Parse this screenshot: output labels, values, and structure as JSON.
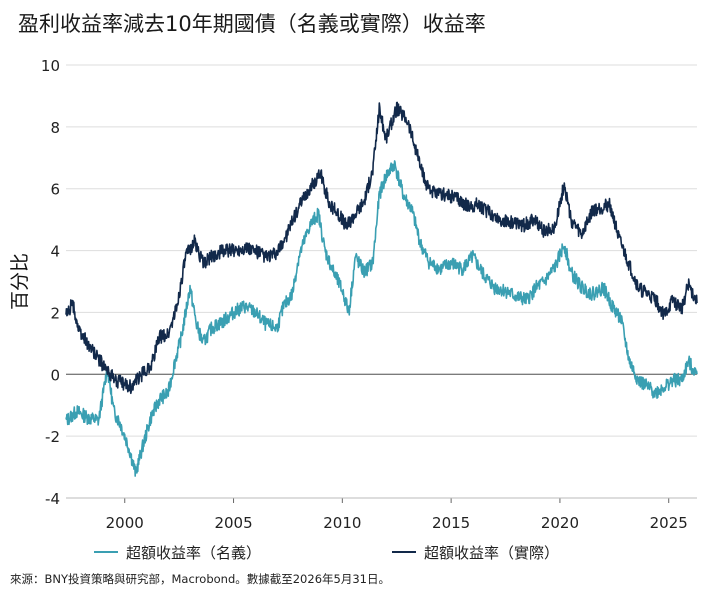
{
  "title": "盈利收益率減去10年期國債（名義或實際）收益率",
  "source": "來源：BNY投資策略與研究部，Macrobond。數據截至2026年5月31日。",
  "chart_data": {
    "type": "line",
    "ylabel": "百分比",
    "ylim": [
      -4,
      10
    ],
    "xlim": [
      1997.3,
      2026.3
    ],
    "y_ticks": [
      "10",
      "8",
      "6",
      "4",
      "2",
      "0",
      "-2",
      "-4"
    ],
    "x_ticks": [
      "2000",
      "2005",
      "2010",
      "2015",
      "2020",
      "2025"
    ],
    "grid": "horizontal",
    "legend_position": "bottom",
    "series": [
      {
        "name": "超額收益率（名義）",
        "color": "#3a9fb2",
        "points": [
          [
            1997.3,
            -1.5
          ],
          [
            1997.8,
            -1.2
          ],
          [
            1998.3,
            -1.4
          ],
          [
            1998.8,
            -1.5
          ],
          [
            1999.2,
            0.2
          ],
          [
            1999.5,
            -1.2
          ],
          [
            1999.8,
            -1.6
          ],
          [
            2000.2,
            -2.4
          ],
          [
            2000.5,
            -3.2
          ],
          [
            2000.8,
            -2.4
          ],
          [
            2001.2,
            -1.4
          ],
          [
            2001.6,
            -0.8
          ],
          [
            2002.0,
            -0.6
          ],
          [
            2002.3,
            0.4
          ],
          [
            2002.6,
            1.2
          ],
          [
            2003.0,
            2.8
          ],
          [
            2003.3,
            1.6
          ],
          [
            2003.6,
            1.0
          ],
          [
            2004.0,
            1.5
          ],
          [
            2004.5,
            1.7
          ],
          [
            2005.0,
            2.0
          ],
          [
            2005.5,
            2.2
          ],
          [
            2006.0,
            2.0
          ],
          [
            2006.5,
            1.6
          ],
          [
            2007.0,
            1.5
          ],
          [
            2007.3,
            2.2
          ],
          [
            2007.7,
            2.6
          ],
          [
            2008.0,
            3.8
          ],
          [
            2008.5,
            4.8
          ],
          [
            2008.9,
            5.2
          ],
          [
            2009.2,
            4.0
          ],
          [
            2009.6,
            3.3
          ],
          [
            2010.0,
            2.7
          ],
          [
            2010.3,
            2.0
          ],
          [
            2010.6,
            3.8
          ],
          [
            2011.0,
            3.3
          ],
          [
            2011.4,
            3.6
          ],
          [
            2011.7,
            5.8
          ],
          [
            2012.0,
            6.4
          ],
          [
            2012.4,
            6.8
          ],
          [
            2012.8,
            5.8
          ],
          [
            2013.2,
            5.3
          ],
          [
            2013.6,
            4.2
          ],
          [
            2014.0,
            3.6
          ],
          [
            2014.5,
            3.4
          ],
          [
            2015.0,
            3.6
          ],
          [
            2015.5,
            3.4
          ],
          [
            2016.0,
            3.8
          ],
          [
            2016.5,
            3.2
          ],
          [
            2017.0,
            2.8
          ],
          [
            2017.5,
            2.7
          ],
          [
            2018.0,
            2.5
          ],
          [
            2018.5,
            2.4
          ],
          [
            2018.9,
            2.8
          ],
          [
            2019.3,
            3.0
          ],
          [
            2019.8,
            3.5
          ],
          [
            2020.2,
            4.2
          ],
          [
            2020.5,
            3.3
          ],
          [
            2021.0,
            2.8
          ],
          [
            2021.5,
            2.6
          ],
          [
            2022.0,
            2.8
          ],
          [
            2022.4,
            2.2
          ],
          [
            2022.8,
            1.8
          ],
          [
            2023.2,
            0.4
          ],
          [
            2023.6,
            -0.2
          ],
          [
            2024.0,
            -0.4
          ],
          [
            2024.4,
            -0.6
          ],
          [
            2024.8,
            -0.4
          ],
          [
            2025.2,
            -0.2
          ],
          [
            2025.6,
            -0.2
          ],
          [
            2025.9,
            0.4
          ],
          [
            2026.3,
            0.0
          ]
        ]
      },
      {
        "name": "超額收益率（實際）",
        "color": "#12294a",
        "points": [
          [
            1997.3,
            1.9
          ],
          [
            1997.6,
            2.3
          ],
          [
            1997.9,
            1.4
          ],
          [
            1998.3,
            1.0
          ],
          [
            1998.8,
            0.5
          ],
          [
            1999.2,
            0.1
          ],
          [
            1999.6,
            -0.2
          ],
          [
            1999.9,
            -0.3
          ],
          [
            2000.3,
            -0.4
          ],
          [
            2000.8,
            0.0
          ],
          [
            2001.2,
            0.3
          ],
          [
            2001.6,
            1.2
          ],
          [
            2002.0,
            1.3
          ],
          [
            2002.4,
            2.2
          ],
          [
            2002.8,
            3.8
          ],
          [
            2003.2,
            4.3
          ],
          [
            2003.6,
            3.6
          ],
          [
            2004.0,
            3.8
          ],
          [
            2004.5,
            4.0
          ],
          [
            2005.0,
            4.0
          ],
          [
            2005.5,
            4.1
          ],
          [
            2006.0,
            4.0
          ],
          [
            2006.5,
            3.8
          ],
          [
            2007.0,
            3.9
          ],
          [
            2007.5,
            4.6
          ],
          [
            2008.0,
            5.4
          ],
          [
            2008.5,
            6.0
          ],
          [
            2009.0,
            6.5
          ],
          [
            2009.4,
            5.5
          ],
          [
            2009.8,
            5.2
          ],
          [
            2010.2,
            4.8
          ],
          [
            2010.6,
            5.2
          ],
          [
            2011.0,
            5.6
          ],
          [
            2011.4,
            6.6
          ],
          [
            2011.7,
            8.6
          ],
          [
            2012.0,
            7.6
          ],
          [
            2012.5,
            8.6
          ],
          [
            2013.0,
            8.2
          ],
          [
            2013.4,
            7.2
          ],
          [
            2013.8,
            6.2
          ],
          [
            2014.3,
            5.8
          ],
          [
            2014.8,
            5.8
          ],
          [
            2015.3,
            5.7
          ],
          [
            2015.8,
            5.4
          ],
          [
            2016.2,
            5.5
          ],
          [
            2016.8,
            5.2
          ],
          [
            2017.3,
            5.0
          ],
          [
            2017.8,
            4.9
          ],
          [
            2018.3,
            4.8
          ],
          [
            2018.8,
            5.0
          ],
          [
            2019.3,
            4.6
          ],
          [
            2019.8,
            4.8
          ],
          [
            2020.2,
            6.2
          ],
          [
            2020.5,
            5.0
          ],
          [
            2021.0,
            4.5
          ],
          [
            2021.5,
            5.3
          ],
          [
            2022.0,
            5.4
          ],
          [
            2022.3,
            5.5
          ],
          [
            2022.7,
            4.4
          ],
          [
            2023.2,
            3.5
          ],
          [
            2023.6,
            2.8
          ],
          [
            2024.0,
            2.6
          ],
          [
            2024.4,
            2.4
          ],
          [
            2024.8,
            1.9
          ],
          [
            2025.2,
            2.4
          ],
          [
            2025.6,
            2.1
          ],
          [
            2025.9,
            2.9
          ],
          [
            2026.3,
            2.3
          ]
        ]
      }
    ]
  }
}
